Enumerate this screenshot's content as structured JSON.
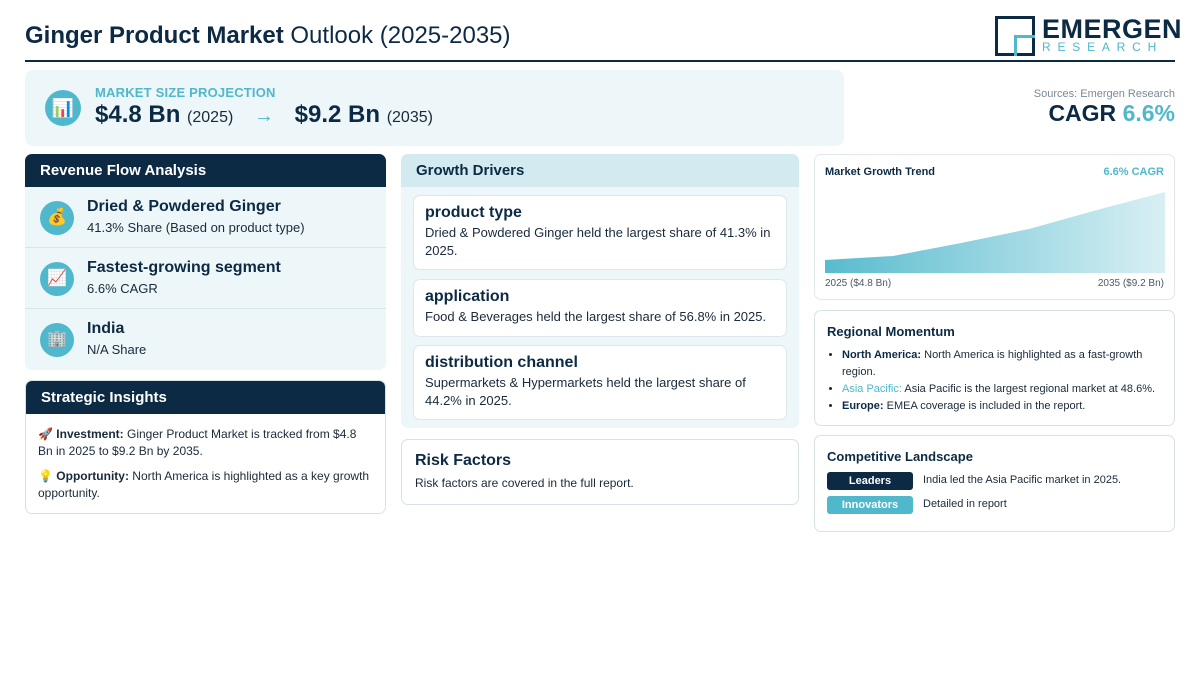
{
  "header": {
    "title_bold": "Ginger Product Market",
    "title_rest": " Outlook (2025-2035)",
    "logo_main": "EMERGEN",
    "logo_sub": "RESEARCH"
  },
  "projection": {
    "icon": "bar-chart-icon",
    "label": "MARKET SIZE PROJECTION",
    "start_value": "$4.8 Bn",
    "start_year": "(2025)",
    "arrow": "→",
    "end_value": "$9.2 Bn",
    "end_year": "(2035)"
  },
  "sources": "Sources: Emergen Research",
  "cagr": {
    "label": "CAGR",
    "value": "6.6%"
  },
  "revenue": {
    "title": "Revenue Flow Analysis",
    "items": [
      {
        "icon": "money-bag-icon",
        "glyph": "💰",
        "title": "Dried & Powdered Ginger",
        "sub": "41.3% Share (Based on product type)"
      },
      {
        "icon": "trend-up-icon",
        "glyph": "📈",
        "title": "Fastest-growing segment",
        "sub": "6.6% CAGR"
      },
      {
        "icon": "building-icon",
        "glyph": "🏢",
        "title": "India",
        "sub": "N/A Share"
      }
    ]
  },
  "strategic": {
    "title": "Strategic Insights",
    "items": [
      {
        "glyph": "🚀",
        "label": "Investment:",
        "text": " Ginger Product Market is tracked from $4.8 Bn in 2025 to $9.2 Bn by 2035."
      },
      {
        "glyph": "💡",
        "label": "Opportunity:",
        "text": " North America is highlighted as a key growth opportunity."
      }
    ]
  },
  "drivers": {
    "title": "Growth Drivers",
    "items": [
      {
        "title": "product type",
        "text": "Dried & Powdered Ginger held the largest share of 41.3% in 2025."
      },
      {
        "title": "application",
        "text": "Food & Beverages held the largest share of 56.8% in 2025."
      },
      {
        "title": "distribution channel",
        "text": "Supermarkets & Hypermarkets held the largest share of 44.2% in 2025."
      }
    ]
  },
  "risk": {
    "title": "Risk Factors",
    "text": "Risk factors are covered in the full report."
  },
  "trend": {
    "title": "Market Growth Trend",
    "cagr": "6.6% CAGR",
    "start_label": "2025 ($4.8 Bn)",
    "end_label": "2035 ($9.2 Bn)"
  },
  "regional": {
    "title": "Regional Momentum",
    "items": [
      {
        "label": "North America:",
        "text": " North America is highlighted as a fast-growth region.",
        "highlight": false
      },
      {
        "label": "Asia Pacific:",
        "text": " Asia Pacific is the largest regional market at 48.6%.",
        "highlight": true
      },
      {
        "label": "Europe:",
        "text": " EMEA coverage is included in the report.",
        "highlight": false
      }
    ]
  },
  "competitive": {
    "title": "Competitive Landscape",
    "rows": [
      {
        "badge": "Leaders",
        "color": "#0d2a44",
        "text": "India led the Asia Pacific market in 2025."
      },
      {
        "badge": "Innovators",
        "color": "#4fb8cc",
        "text": "Detailed in report"
      }
    ]
  },
  "colors": {
    "navy": "#0d2a44",
    "teal": "#4fb8cc",
    "panel_bg": "#edf6f8"
  }
}
